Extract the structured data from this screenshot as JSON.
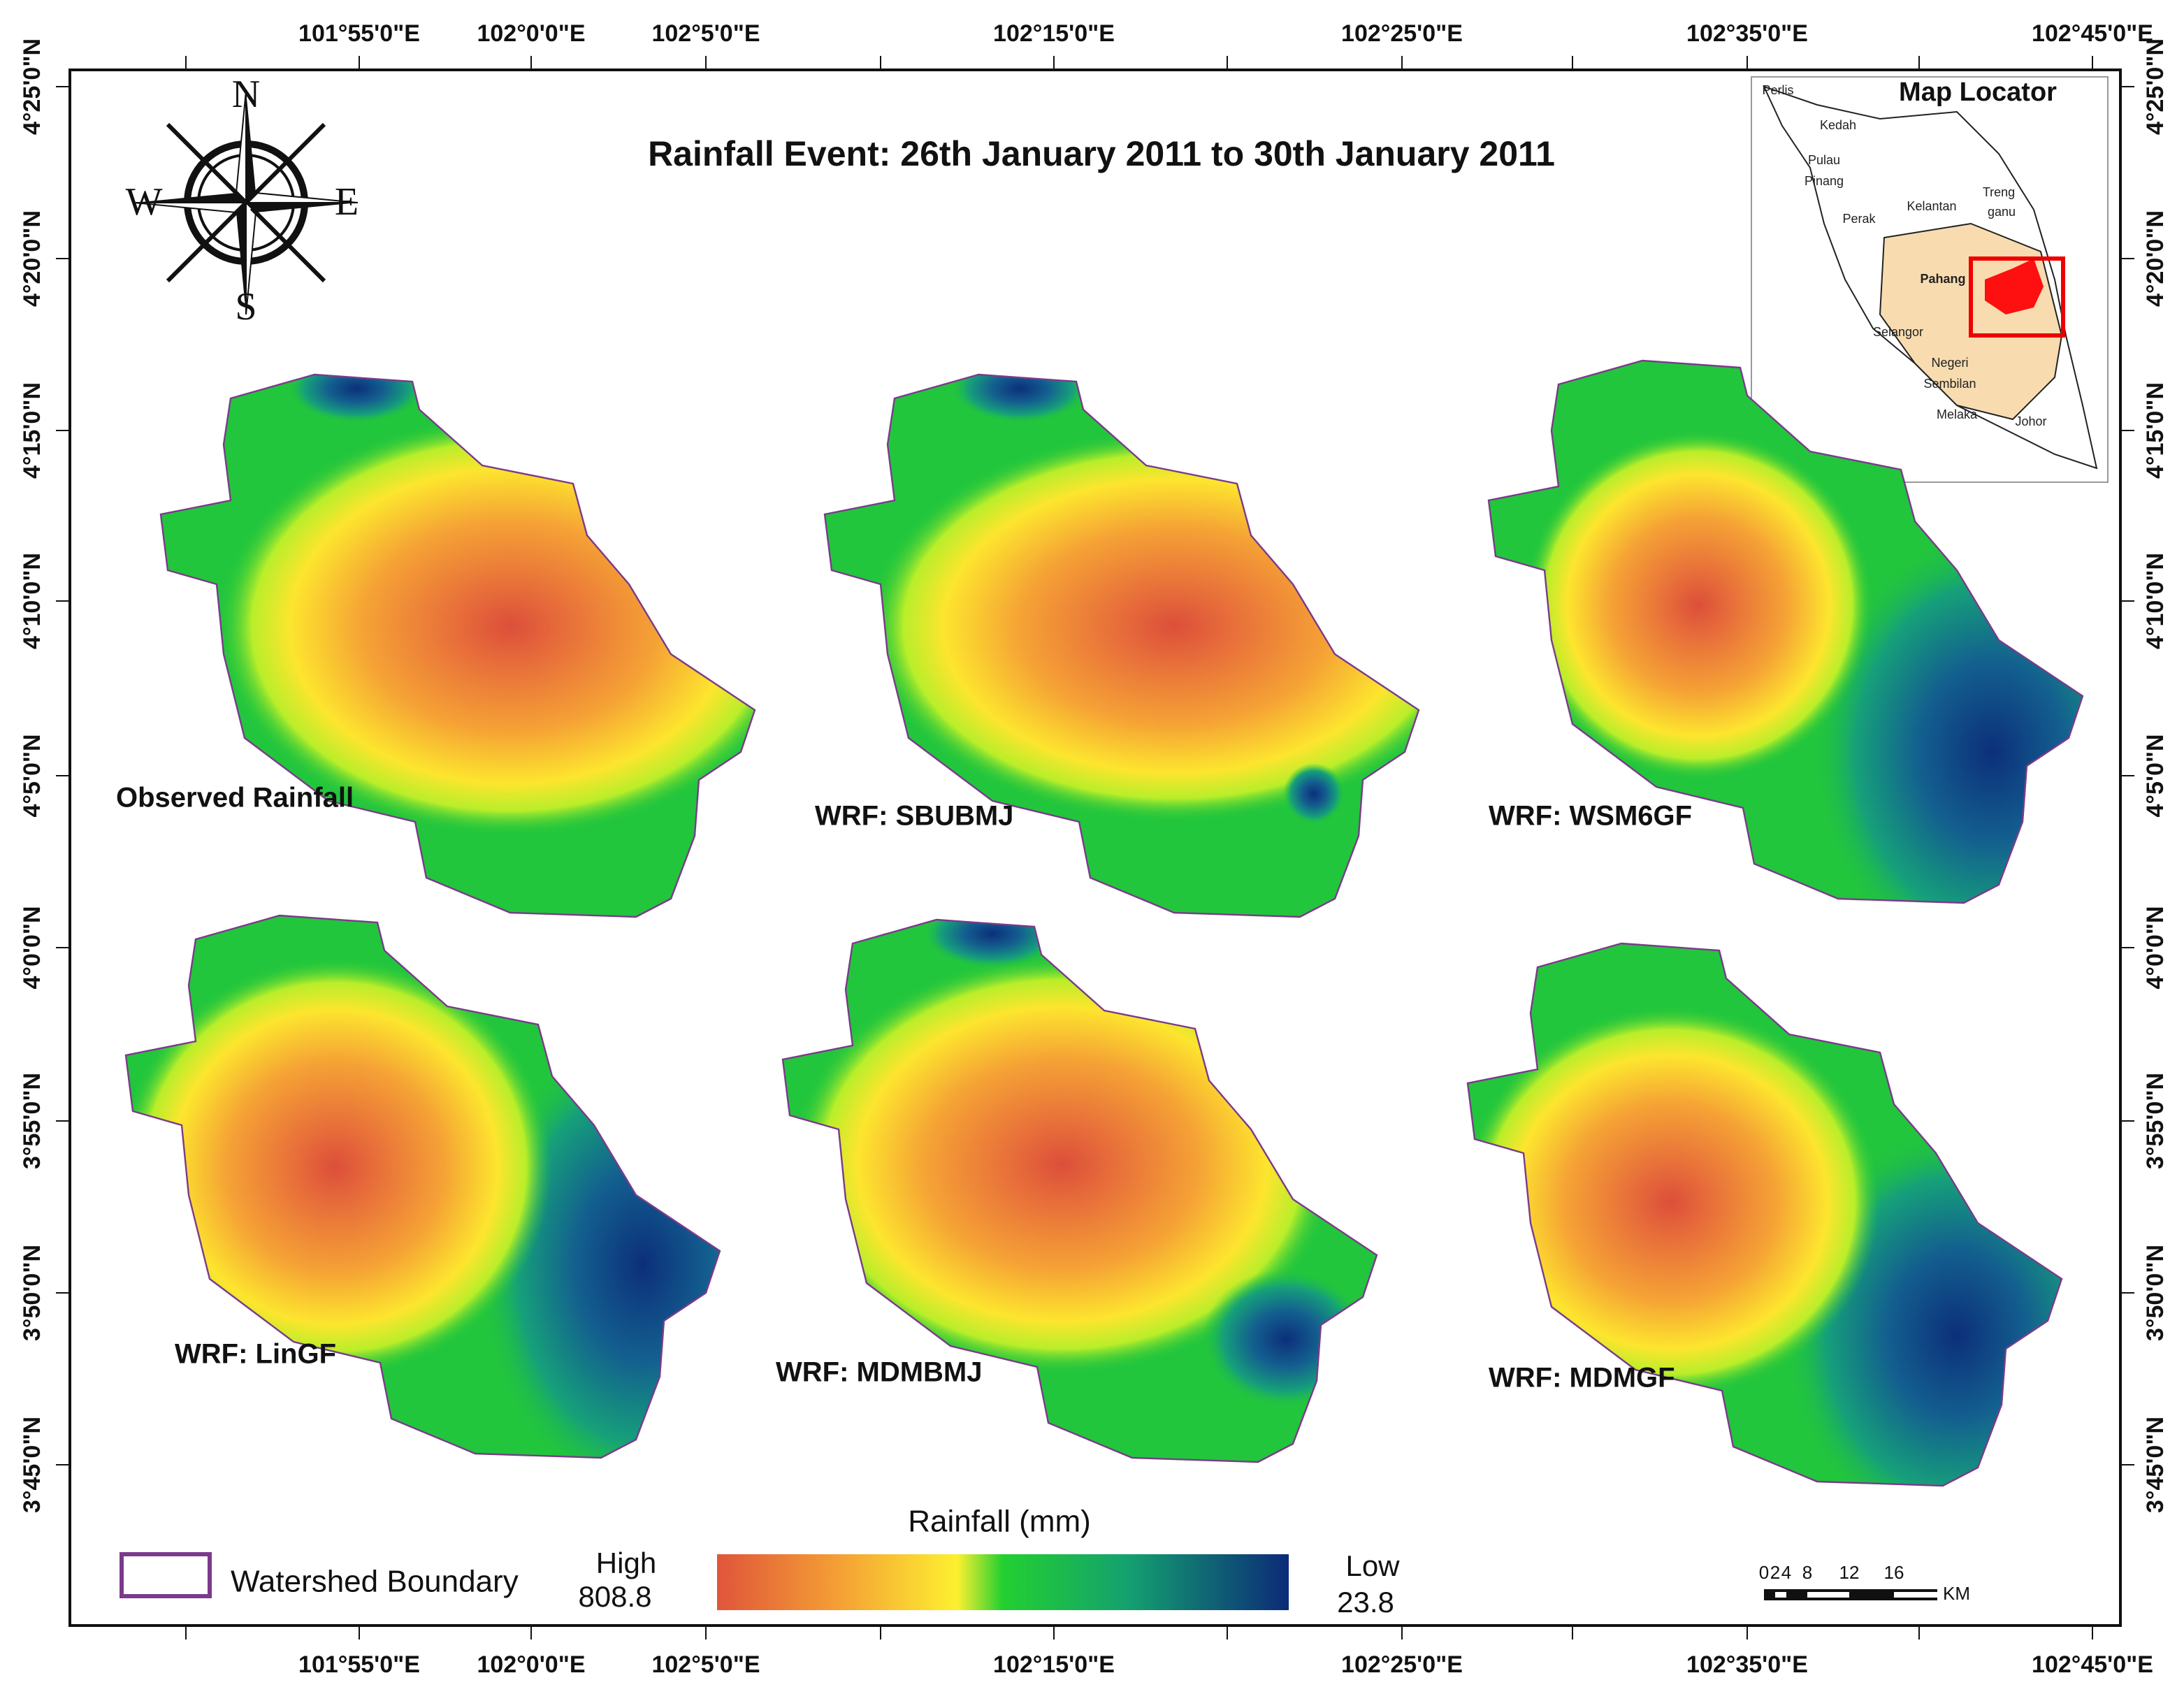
{
  "title": "Rainfall Event: 26th January 2011 to 30th January 2011",
  "axes": {
    "top_labels": [
      "101°55'0\"E",
      "102°0'0\"E",
      "102°5'0\"E",
      "102°15'0\"E",
      "102°25'0\"E",
      "102°35'0\"E",
      "102°45'0\"E"
    ],
    "bottom_labels": [
      "101°55'0\"E",
      "102°0'0\"E",
      "102°5'0\"E",
      "102°15'0\"E",
      "102°25'0\"E",
      "102°35'0\"E",
      "102°45'0\"E"
    ],
    "left_labels": [
      "4°25'0\"N",
      "4°20'0\"N",
      "4°15'0\"N",
      "4°10'0\"N",
      "4°5'0\"N",
      "4°0'0\"N",
      "3°55'0\"N",
      "3°50'0\"N",
      "3°45'0\"N"
    ],
    "right_labels": [
      "4°25'0\"N",
      "4°20'0\"N",
      "4°15'0\"N",
      "4°10'0\"N",
      "4°5'0\"N",
      "4°0'0\"N",
      "3°55'0\"N",
      "3°50'0\"N",
      "3°45'0\"N"
    ]
  },
  "compass": {
    "north": "N",
    "south": "S",
    "east": "E",
    "west": "W"
  },
  "panels": [
    {
      "label": "Observed Rainfall"
    },
    {
      "label": "WRF: SBUBMJ"
    },
    {
      "label": "WRF: WSM6GF"
    },
    {
      "label": "WRF: LinGF"
    },
    {
      "label": "WRF: MDMBMJ"
    },
    {
      "label": "WRF: MDMGF"
    }
  ],
  "legend": {
    "boundary_label": "Watershed Boundary",
    "title": "Rainfall (mm)",
    "high_label": "High",
    "high_value": 808.8,
    "low_label": "Low",
    "low_value": 23.8
  },
  "map_locator": {
    "title": "Map Locator",
    "states": [
      "Perlis",
      "Kedah",
      "Pulau",
      "Pinang",
      "Perak",
      "Kelantan",
      "Treng",
      "ganu",
      "Pahang",
      "Selangor",
      "Negeri",
      "Sembilan",
      "Melaka",
      "Johor"
    ]
  },
  "scale_bar": {
    "labels": [
      "0",
      "2",
      "4",
      "8",
      "12",
      "16"
    ],
    "unit": "KM"
  }
}
